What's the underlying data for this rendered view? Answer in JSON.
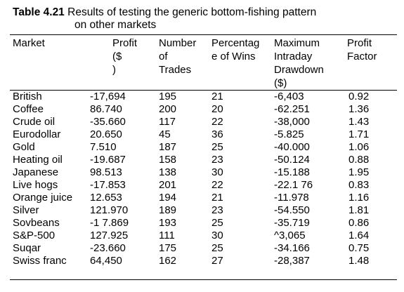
{
  "table": {
    "label": "Table 4.21",
    "title_line1": "Results of testing the generic bottom-fishing pattern",
    "title_line2": "on other markets",
    "headers": {
      "market": "Market",
      "profit": "Profit\n($\n)",
      "trades": "Number\nof\nTrades",
      "wins": "Percentag\ne of Wins",
      "drawdown": "Maximum\nIntraday\nDrawdown\n($)",
      "profit_factor": "Profit\nFactor"
    },
    "rows": [
      {
        "market": "British",
        "profit": "-17,694",
        "trades": "195",
        "wins": "21",
        "drawdown": "-6,403",
        "profit_factor": "0.92"
      },
      {
        "market": "Coffee",
        "profit": "86.740",
        "trades": "200",
        "wins": "20",
        "drawdown": "-62.251",
        "profit_factor": "1.36"
      },
      {
        "market": "Crude oil",
        "profit": "-35.660",
        "trades": "117",
        "wins": "22",
        "drawdown": "-38,000",
        "profit_factor": "1.43"
      },
      {
        "market": "Eurodollar",
        "profit": "20.650",
        "trades": "45",
        "wins": "36",
        "drawdown": "-5.825",
        "profit_factor": "1.71"
      },
      {
        "market": "Gold",
        "profit": "7.510",
        "trades": "187",
        "wins": "25",
        "drawdown": "-40.000",
        "profit_factor": "1.06"
      },
      {
        "market": "Heating oil",
        "profit": "-19.687",
        "trades": "158",
        "wins": "23",
        "drawdown": "-50.124",
        "profit_factor": "0.88"
      },
      {
        "market": "Japanese",
        "profit": "98.513",
        "trades": "138",
        "wins": "30",
        "drawdown": "-15.188",
        "profit_factor": "1.95"
      },
      {
        "market": "Live hogs",
        "profit": "-17.853",
        "trades": "201",
        "wins": "22",
        "drawdown": "-22.1 76",
        "profit_factor": "0.83"
      },
      {
        "market": "Orange juice",
        "profit": "12.653",
        "trades": "194",
        "wins": "21",
        "drawdown": "-11.978",
        "profit_factor": "1.16"
      },
      {
        "market": "Silver",
        "profit": "121.970",
        "trades": "189",
        "wins": "23",
        "drawdown": "-54.550",
        "profit_factor": "1.81"
      },
      {
        "market": "Sovbeans",
        "profit": "-1 7.869",
        "trades": "193",
        "wins": "25",
        "drawdown": "-35.719",
        "profit_factor": "0.86"
      },
      {
        "market": "S&P-500",
        "profit": "127.925",
        "trades": "111",
        "wins": "30",
        "drawdown": "^3,065",
        "profit_factor": "1.64"
      },
      {
        "market": "Suqar",
        "profit": "-23.660",
        "trades": "175",
        "wins": "25",
        "drawdown": "-34.166",
        "profit_factor": "0.75"
      },
      {
        "market": "Swiss franc",
        "profit": "64,450",
        "trades": "162",
        "wins": "27",
        "drawdown": "-28,387",
        "profit_factor": "1.48"
      }
    ]
  }
}
